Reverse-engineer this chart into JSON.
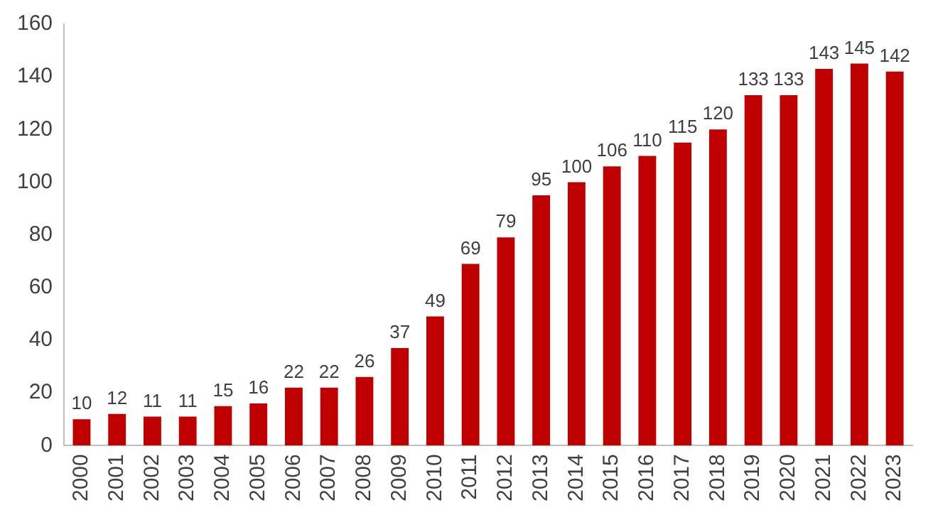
{
  "chart_data": {
    "type": "bar",
    "categories": [
      "2000",
      "2001",
      "2002",
      "2003",
      "2004",
      "2005",
      "2006",
      "2007",
      "2008",
      "2009",
      "2010",
      "2011",
      "2012",
      "2013",
      "2014",
      "2015",
      "2016",
      "2017",
      "2018",
      "2019",
      "2020",
      "2021",
      "2022",
      "2023"
    ],
    "values": [
      10,
      12,
      11,
      11,
      15,
      16,
      22,
      22,
      26,
      37,
      49,
      69,
      79,
      95,
      100,
      106,
      110,
      115,
      120,
      133,
      133,
      143,
      145,
      142
    ],
    "color": "#c00000",
    "ylim": [
      0,
      160
    ],
    "yticks": [
      0,
      20,
      40,
      60,
      80,
      100,
      120,
      140,
      160
    ],
    "grid": false,
    "legend": false,
    "data_labels": true
  }
}
